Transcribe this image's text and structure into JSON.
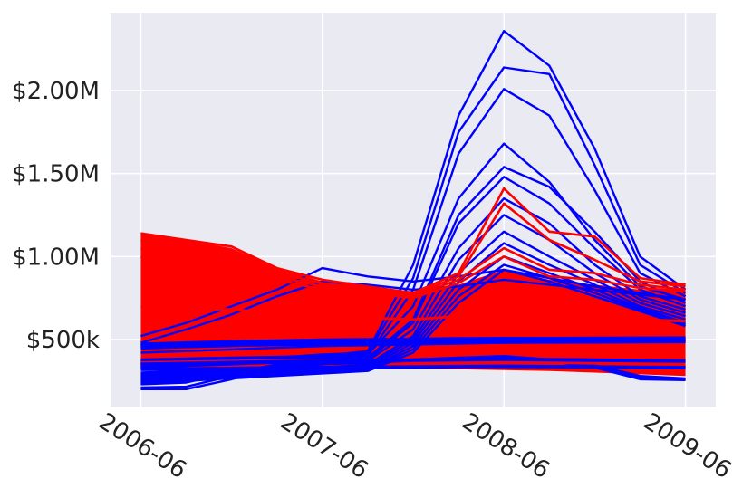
{
  "chart_data": {
    "type": "line",
    "title": "",
    "xlabel": "",
    "ylabel": "",
    "x_ticks": [
      "2006-06",
      "2007-06",
      "2008-06",
      "2009-06"
    ],
    "y_ticks": [
      {
        "value": 500000,
        "label": "$500k"
      },
      {
        "value": 1000000,
        "label": "$1.00M"
      },
      {
        "value": 1500000,
        "label": "$1.50M"
      },
      {
        "value": 2000000,
        "label": "$2.00M"
      }
    ],
    "xlim": [
      "2006-04",
      "2009-08"
    ],
    "ylim": [
      90000,
      2470000
    ],
    "grid": true,
    "legend": "none",
    "series_colors": {
      "blue_group": "#0000ff",
      "red_group": "#ff0000"
    },
    "x": [
      "2006-06",
      "2006-09",
      "2006-12",
      "2007-03",
      "2007-06",
      "2007-09",
      "2007-12",
      "2008-03",
      "2008-06",
      "2008-09",
      "2008-12",
      "2009-03",
      "2009-06"
    ],
    "blue_series": [
      {
        "values": [
          380000,
          385000,
          390000,
          395000,
          400000,
          430000,
          950000,
          1850000,
          2360000,
          2150000,
          1650000,
          1000000,
          800000
        ]
      },
      {
        "values": [
          370000,
          375000,
          380000,
          390000,
          410000,
          420000,
          870000,
          1750000,
          2140000,
          2100000,
          1550000,
          950000,
          780000
        ]
      },
      {
        "values": [
          360000,
          365000,
          372000,
          380000,
          390000,
          400000,
          800000,
          1620000,
          2010000,
          1850000,
          1400000,
          900000,
          760000
        ]
      },
      {
        "values": [
          350000,
          360000,
          370000,
          380000,
          400000,
          410000,
          700000,
          1350000,
          1680000,
          1450000,
          1100000,
          820000,
          740000
        ]
      },
      {
        "values": [
          340000,
          350000,
          360000,
          370000,
          380000,
          390000,
          620000,
          1250000,
          1540000,
          1420000,
          1150000,
          850000,
          720000
        ]
      },
      {
        "values": [
          330000,
          340000,
          350000,
          360000,
          370000,
          380000,
          600000,
          1200000,
          1480000,
          1320000,
          1050000,
          800000,
          700000
        ]
      },
      {
        "values": [
          300000,
          310000,
          320000,
          330000,
          350000,
          370000,
          560000,
          1050000,
          1350000,
          1200000,
          950000,
          760000,
          680000
        ]
      },
      {
        "values": [
          290000,
          300000,
          310000,
          320000,
          330000,
          350000,
          520000,
          980000,
          1250000,
          1100000,
          900000,
          740000,
          660000
        ]
      },
      {
        "values": [
          280000,
          290000,
          300000,
          310000,
          320000,
          340000,
          500000,
          900000,
          1150000,
          1000000,
          860000,
          720000,
          640000
        ]
      },
      {
        "values": [
          270000,
          280000,
          290000,
          300000,
          310000,
          330000,
          480000,
          850000,
          1080000,
          950000,
          830000,
          700000,
          620000
        ]
      },
      {
        "values": [
          260000,
          270000,
          280000,
          290000,
          300000,
          320000,
          460000,
          800000,
          1000000,
          900000,
          800000,
          690000,
          600000
        ]
      },
      {
        "values": [
          250000,
          260000,
          275000,
          285000,
          300000,
          315000,
          440000,
          760000,
          950000,
          870000,
          780000,
          680000,
          590000
        ]
      },
      {
        "values": [
          240000,
          250000,
          265000,
          280000,
          295000,
          310000,
          420000,
          720000,
          920000,
          850000,
          760000,
          670000,
          580000
        ]
      },
      {
        "values": [
          520000,
          600000,
          700000,
          800000,
          930000,
          880000,
          850000,
          880000,
          920000,
          870000,
          820000,
          780000,
          740000
        ]
      },
      {
        "values": [
          480000,
          560000,
          650000,
          760000,
          850000,
          830000,
          800000,
          820000,
          860000,
          830000,
          800000,
          770000,
          740000
        ]
      },
      {
        "values": [
          470000,
          478000,
          485000,
          490000,
          495000,
          498000,
          500000,
          503000,
          505000,
          505000,
          506000,
          507000,
          508000
        ]
      },
      {
        "values": [
          460000,
          468000,
          475000,
          480000,
          485000,
          488000,
          490000,
          493000,
          495000,
          495000,
          496000,
          497000,
          498000
        ]
      },
      {
        "values": [
          450000,
          458000,
          465000,
          470000,
          475000,
          478000,
          480000,
          483000,
          485000,
          485000,
          486000,
          487000,
          488000
        ]
      },
      {
        "values": [
          420000,
          430000,
          440000,
          450000,
          460000,
          465000,
          470000,
          475000,
          480000,
          482000,
          484000,
          486000,
          488000
        ]
      },
      {
        "values": [
          350000,
          355000,
          360000,
          365000,
          370000,
          372000,
          375000,
          378000,
          380000,
          378000,
          375000,
          372000,
          370000
        ]
      },
      {
        "values": [
          320000,
          322000,
          325000,
          328000,
          330000,
          332000,
          334000,
          336000,
          338000,
          336000,
          334000,
          332000,
          330000
        ]
      },
      {
        "values": [
          200000,
          200000,
          260000,
          330000,
          350000,
          360000,
          370000,
          380000,
          390000,
          370000,
          330000,
          260000,
          255000
        ]
      },
      {
        "values": [
          210000,
          215000,
          280000,
          340000,
          355000,
          365000,
          375000,
          385000,
          395000,
          375000,
          340000,
          270000,
          260000
        ]
      },
      {
        "values": [
          230000,
          240000,
          300000,
          350000,
          360000,
          370000,
          380000,
          390000,
          400000,
          380000,
          345000,
          280000,
          265000
        ]
      }
    ],
    "red_series": [
      {
        "values": [
          1140000,
          1100000,
          1060000,
          930000,
          860000,
          820000,
          780000,
          900000,
          1410000,
          1150000,
          1120000,
          870000,
          830000
        ]
      },
      {
        "values": [
          1100000,
          1060000,
          1000000,
          900000,
          840000,
          800000,
          770000,
          880000,
          1320000,
          1100000,
          980000,
          850000,
          820000
        ]
      },
      {
        "values": [
          1050000,
          1000000,
          950000,
          880000,
          820000,
          790000,
          760000,
          860000,
          1050000,
          920000,
          900000,
          830000,
          800000
        ]
      },
      {
        "values": [
          1000000,
          960000,
          920000,
          860000,
          800000,
          780000,
          750000,
          840000,
          1000000,
          880000,
          860000,
          810000,
          790000
        ]
      }
    ],
    "red_band_upper": [
      1140000,
      1100000,
      1050000,
      930000,
      850000,
      820000,
      790000,
      830000,
      920000,
      860000,
      830000,
      800000,
      790000
    ],
    "red_band_lower": [
      320000,
      325000,
      330000,
      330000,
      330000,
      328000,
      325000,
      320000,
      315000,
      310000,
      300000,
      290000,
      280000
    ],
    "red_band_inner_upper": [
      700000,
      690000,
      680000,
      660000,
      640000,
      630000,
      620000,
      640000,
      700000,
      660000,
      640000,
      620000,
      610000
    ],
    "red_band_inner_lower": [
      360000,
      365000,
      370000,
      372000,
      374000,
      372000,
      370000,
      368000,
      366000,
      362000,
      356000,
      348000,
      340000
    ]
  }
}
